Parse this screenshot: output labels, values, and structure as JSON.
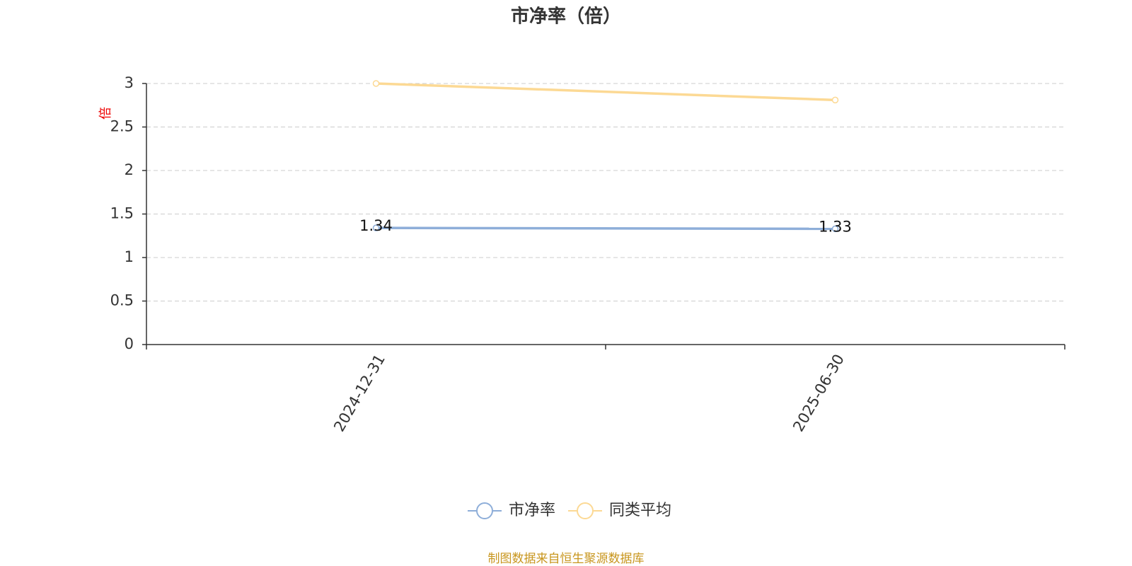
{
  "chart_data": {
    "type": "line",
    "title": "市净率（倍）",
    "y_label": "倍",
    "categories": [
      "2024-12-31",
      "2025-06-30"
    ],
    "series": [
      {
        "name": "市净率",
        "color": "#8eaed9",
        "values": [
          1.34,
          1.33
        ],
        "labels": true
      },
      {
        "name": "同类平均",
        "color": "#fcd994",
        "values": [
          3.0,
          2.81
        ],
        "labels": false
      }
    ],
    "ylim": [
      0,
      3
    ],
    "yticks": [
      0,
      0.5,
      1,
      1.5,
      2,
      2.5,
      3
    ],
    "grid": true,
    "legend": "bottom",
    "source": "制图数据来自恒生聚源数据库"
  }
}
